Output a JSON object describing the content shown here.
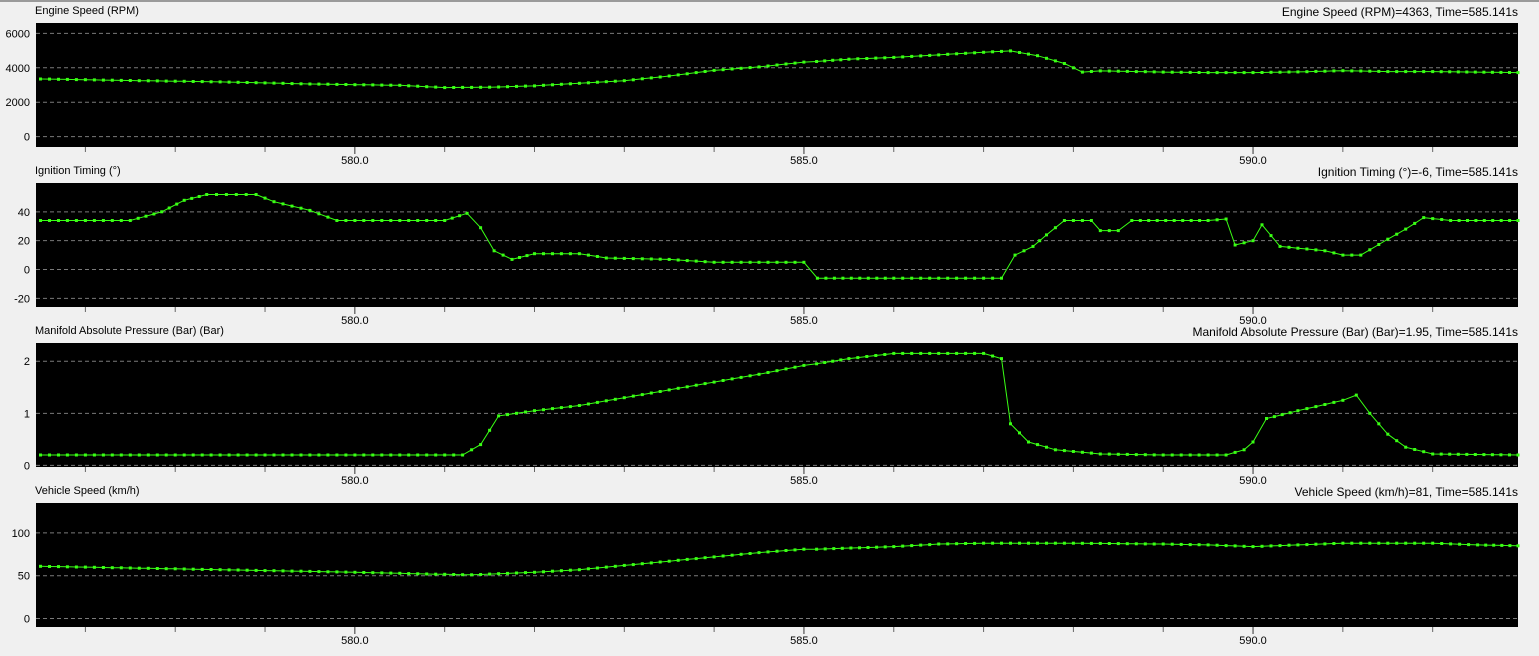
{
  "colors": {
    "plot_bg": "#000000",
    "trace": "#39ff14",
    "grid": "#7a7a7a",
    "panel_bg": "#f0f0f0",
    "warn": "#ff3030"
  },
  "x_ticks": [
    "580.0",
    "585.0",
    "590.0"
  ],
  "chart_data": [
    {
      "type": "line",
      "title": "Engine Speed (RPM)",
      "readout": "Engine Speed (RPM)=4363, Time=585.141s",
      "x_range": [
        576.45,
        592.95
      ],
      "ylim": [
        -600,
        6600
      ],
      "y_ticks": [
        "6000",
        "4000",
        "2000",
        "0"
      ],
      "y_tick_values": [
        6000,
        4000,
        2000,
        0
      ],
      "grid": true,
      "points": [
        [
          576.5,
          3350
        ],
        [
          577.5,
          3260
        ],
        [
          578.5,
          3180
        ],
        [
          579.5,
          3060
        ],
        [
          580.5,
          2980
        ],
        [
          581.0,
          2850
        ],
        [
          581.5,
          2870
        ],
        [
          582.0,
          2950
        ],
        [
          582.5,
          3100
        ],
        [
          583.0,
          3250
        ],
        [
          583.5,
          3520
        ],
        [
          584.0,
          3850
        ],
        [
          584.5,
          4050
        ],
        [
          585.0,
          4330
        ],
        [
          585.141,
          4363
        ],
        [
          585.5,
          4500
        ],
        [
          586.0,
          4600
        ],
        [
          586.5,
          4750
        ],
        [
          587.0,
          4900
        ],
        [
          587.3,
          4980
        ],
        [
          587.6,
          4700
        ],
        [
          587.9,
          4250
        ],
        [
          588.1,
          3750
        ],
        [
          588.3,
          3820
        ],
        [
          589.0,
          3750
        ],
        [
          589.5,
          3720
        ],
        [
          590.0,
          3720
        ],
        [
          590.5,
          3760
        ],
        [
          591.0,
          3830
        ],
        [
          591.5,
          3780
        ],
        [
          592.0,
          3780
        ],
        [
          592.95,
          3720
        ]
      ]
    },
    {
      "type": "line",
      "title": "Ignition Timing (°)",
      "readout": "Ignition Timing (°)=-6, Time=585.141s",
      "x_range": [
        576.45,
        592.95
      ],
      "ylim": [
        -26,
        60
      ],
      "y_ticks": [
        "40",
        "20",
        "0",
        "-20"
      ],
      "y_tick_values": [
        40,
        20,
        0,
        -20
      ],
      "grid": true,
      "points": [
        [
          576.5,
          34
        ],
        [
          577.5,
          34
        ],
        [
          577.85,
          40
        ],
        [
          578.1,
          48
        ],
        [
          578.35,
          52
        ],
        [
          578.9,
          52
        ],
        [
          579.1,
          47
        ],
        [
          579.5,
          41
        ],
        [
          579.8,
          34
        ],
        [
          581.0,
          34
        ],
        [
          581.25,
          39
        ],
        [
          581.4,
          29
        ],
        [
          581.55,
          13
        ],
        [
          581.75,
          7
        ],
        [
          582.0,
          11
        ],
        [
          582.5,
          11
        ],
        [
          582.8,
          8
        ],
        [
          583.5,
          7
        ],
        [
          584.0,
          5
        ],
        [
          584.5,
          5
        ],
        [
          585.0,
          5
        ],
        [
          585.15,
          -6
        ],
        [
          586.0,
          -6
        ],
        [
          587.0,
          -6
        ],
        [
          587.2,
          -6
        ],
        [
          587.35,
          10
        ],
        [
          587.55,
          16
        ],
        [
          587.7,
          24
        ],
        [
          587.9,
          34
        ],
        [
          588.2,
          34
        ],
        [
          588.3,
          27
        ],
        [
          588.5,
          27
        ],
        [
          588.65,
          34
        ],
        [
          589.5,
          34
        ],
        [
          589.7,
          35
        ],
        [
          589.8,
          17
        ],
        [
          590.0,
          20
        ],
        [
          590.1,
          31
        ],
        [
          590.3,
          16
        ],
        [
          590.8,
          13
        ],
        [
          591.0,
          10
        ],
        [
          591.2,
          10
        ],
        [
          591.5,
          21
        ],
        [
          591.7,
          28
        ],
        [
          591.9,
          36
        ],
        [
          592.2,
          34
        ],
        [
          592.95,
          34
        ]
      ]
    },
    {
      "type": "line",
      "title": "Manifold Absolute Pressure (Bar) (Bar)",
      "readout": "Manifold Absolute Pressure (Bar) (Bar)=1.95, Time=585.141s",
      "x_range": [
        576.45,
        592.95
      ],
      "ylim": [
        -0.03,
        2.35
      ],
      "y_ticks": [
        "2",
        "1",
        "0"
      ],
      "y_tick_values": [
        2,
        1,
        0
      ],
      "grid": true,
      "points": [
        [
          576.5,
          0.2
        ],
        [
          578.5,
          0.2
        ],
        [
          580.5,
          0.2
        ],
        [
          581.2,
          0.2
        ],
        [
          581.4,
          0.4
        ],
        [
          581.6,
          0.95
        ],
        [
          582.0,
          1.05
        ],
        [
          582.5,
          1.15
        ],
        [
          583.0,
          1.3
        ],
        [
          583.5,
          1.45
        ],
        [
          584.0,
          1.6
        ],
        [
          584.5,
          1.75
        ],
        [
          585.0,
          1.92
        ],
        [
          585.141,
          1.95
        ],
        [
          585.5,
          2.05
        ],
        [
          586.0,
          2.15
        ],
        [
          586.5,
          2.15
        ],
        [
          587.0,
          2.15
        ],
        [
          587.2,
          2.05
        ],
        [
          587.3,
          0.8
        ],
        [
          587.5,
          0.45
        ],
        [
          587.8,
          0.3
        ],
        [
          588.3,
          0.22
        ],
        [
          589.0,
          0.2
        ],
        [
          589.7,
          0.2
        ],
        [
          589.9,
          0.3
        ],
        [
          590.0,
          0.45
        ],
        [
          590.15,
          0.9
        ],
        [
          590.5,
          1.05
        ],
        [
          591.0,
          1.25
        ],
        [
          591.15,
          1.35
        ],
        [
          591.3,
          1.0
        ],
        [
          591.5,
          0.6
        ],
        [
          591.7,
          0.35
        ],
        [
          592.0,
          0.22
        ],
        [
          592.95,
          0.2
        ]
      ]
    },
    {
      "type": "line",
      "title": "Vehicle Speed (km/h)",
      "readout": "Vehicle Speed (km/h)=81, Time=585.141s",
      "x_range": [
        576.45,
        592.95
      ],
      "ylim": [
        -10,
        135
      ],
      "y_ticks": [
        "100",
        "50",
        "0"
      ],
      "y_tick_values": [
        100,
        50,
        0
      ],
      "grid": true,
      "points": [
        [
          576.5,
          61
        ],
        [
          577.0,
          60
        ],
        [
          578.0,
          58
        ],
        [
          579.0,
          56
        ],
        [
          580.0,
          54
        ],
        [
          580.8,
          52
        ],
        [
          581.3,
          51
        ],
        [
          582.0,
          54
        ],
        [
          582.5,
          57
        ],
        [
          583.0,
          62
        ],
        [
          583.5,
          67
        ],
        [
          584.0,
          72
        ],
        [
          584.5,
          77
        ],
        [
          585.0,
          81
        ],
        [
          585.141,
          81
        ],
        [
          586.0,
          84
        ],
        [
          586.5,
          87
        ],
        [
          587.0,
          88
        ],
        [
          588.0,
          88
        ],
        [
          589.0,
          87
        ],
        [
          589.5,
          86
        ],
        [
          590.0,
          84
        ],
        [
          590.5,
          86
        ],
        [
          591.0,
          88
        ],
        [
          591.5,
          88
        ],
        [
          592.0,
          88
        ],
        [
          592.5,
          86
        ],
        [
          592.95,
          85
        ]
      ]
    }
  ]
}
